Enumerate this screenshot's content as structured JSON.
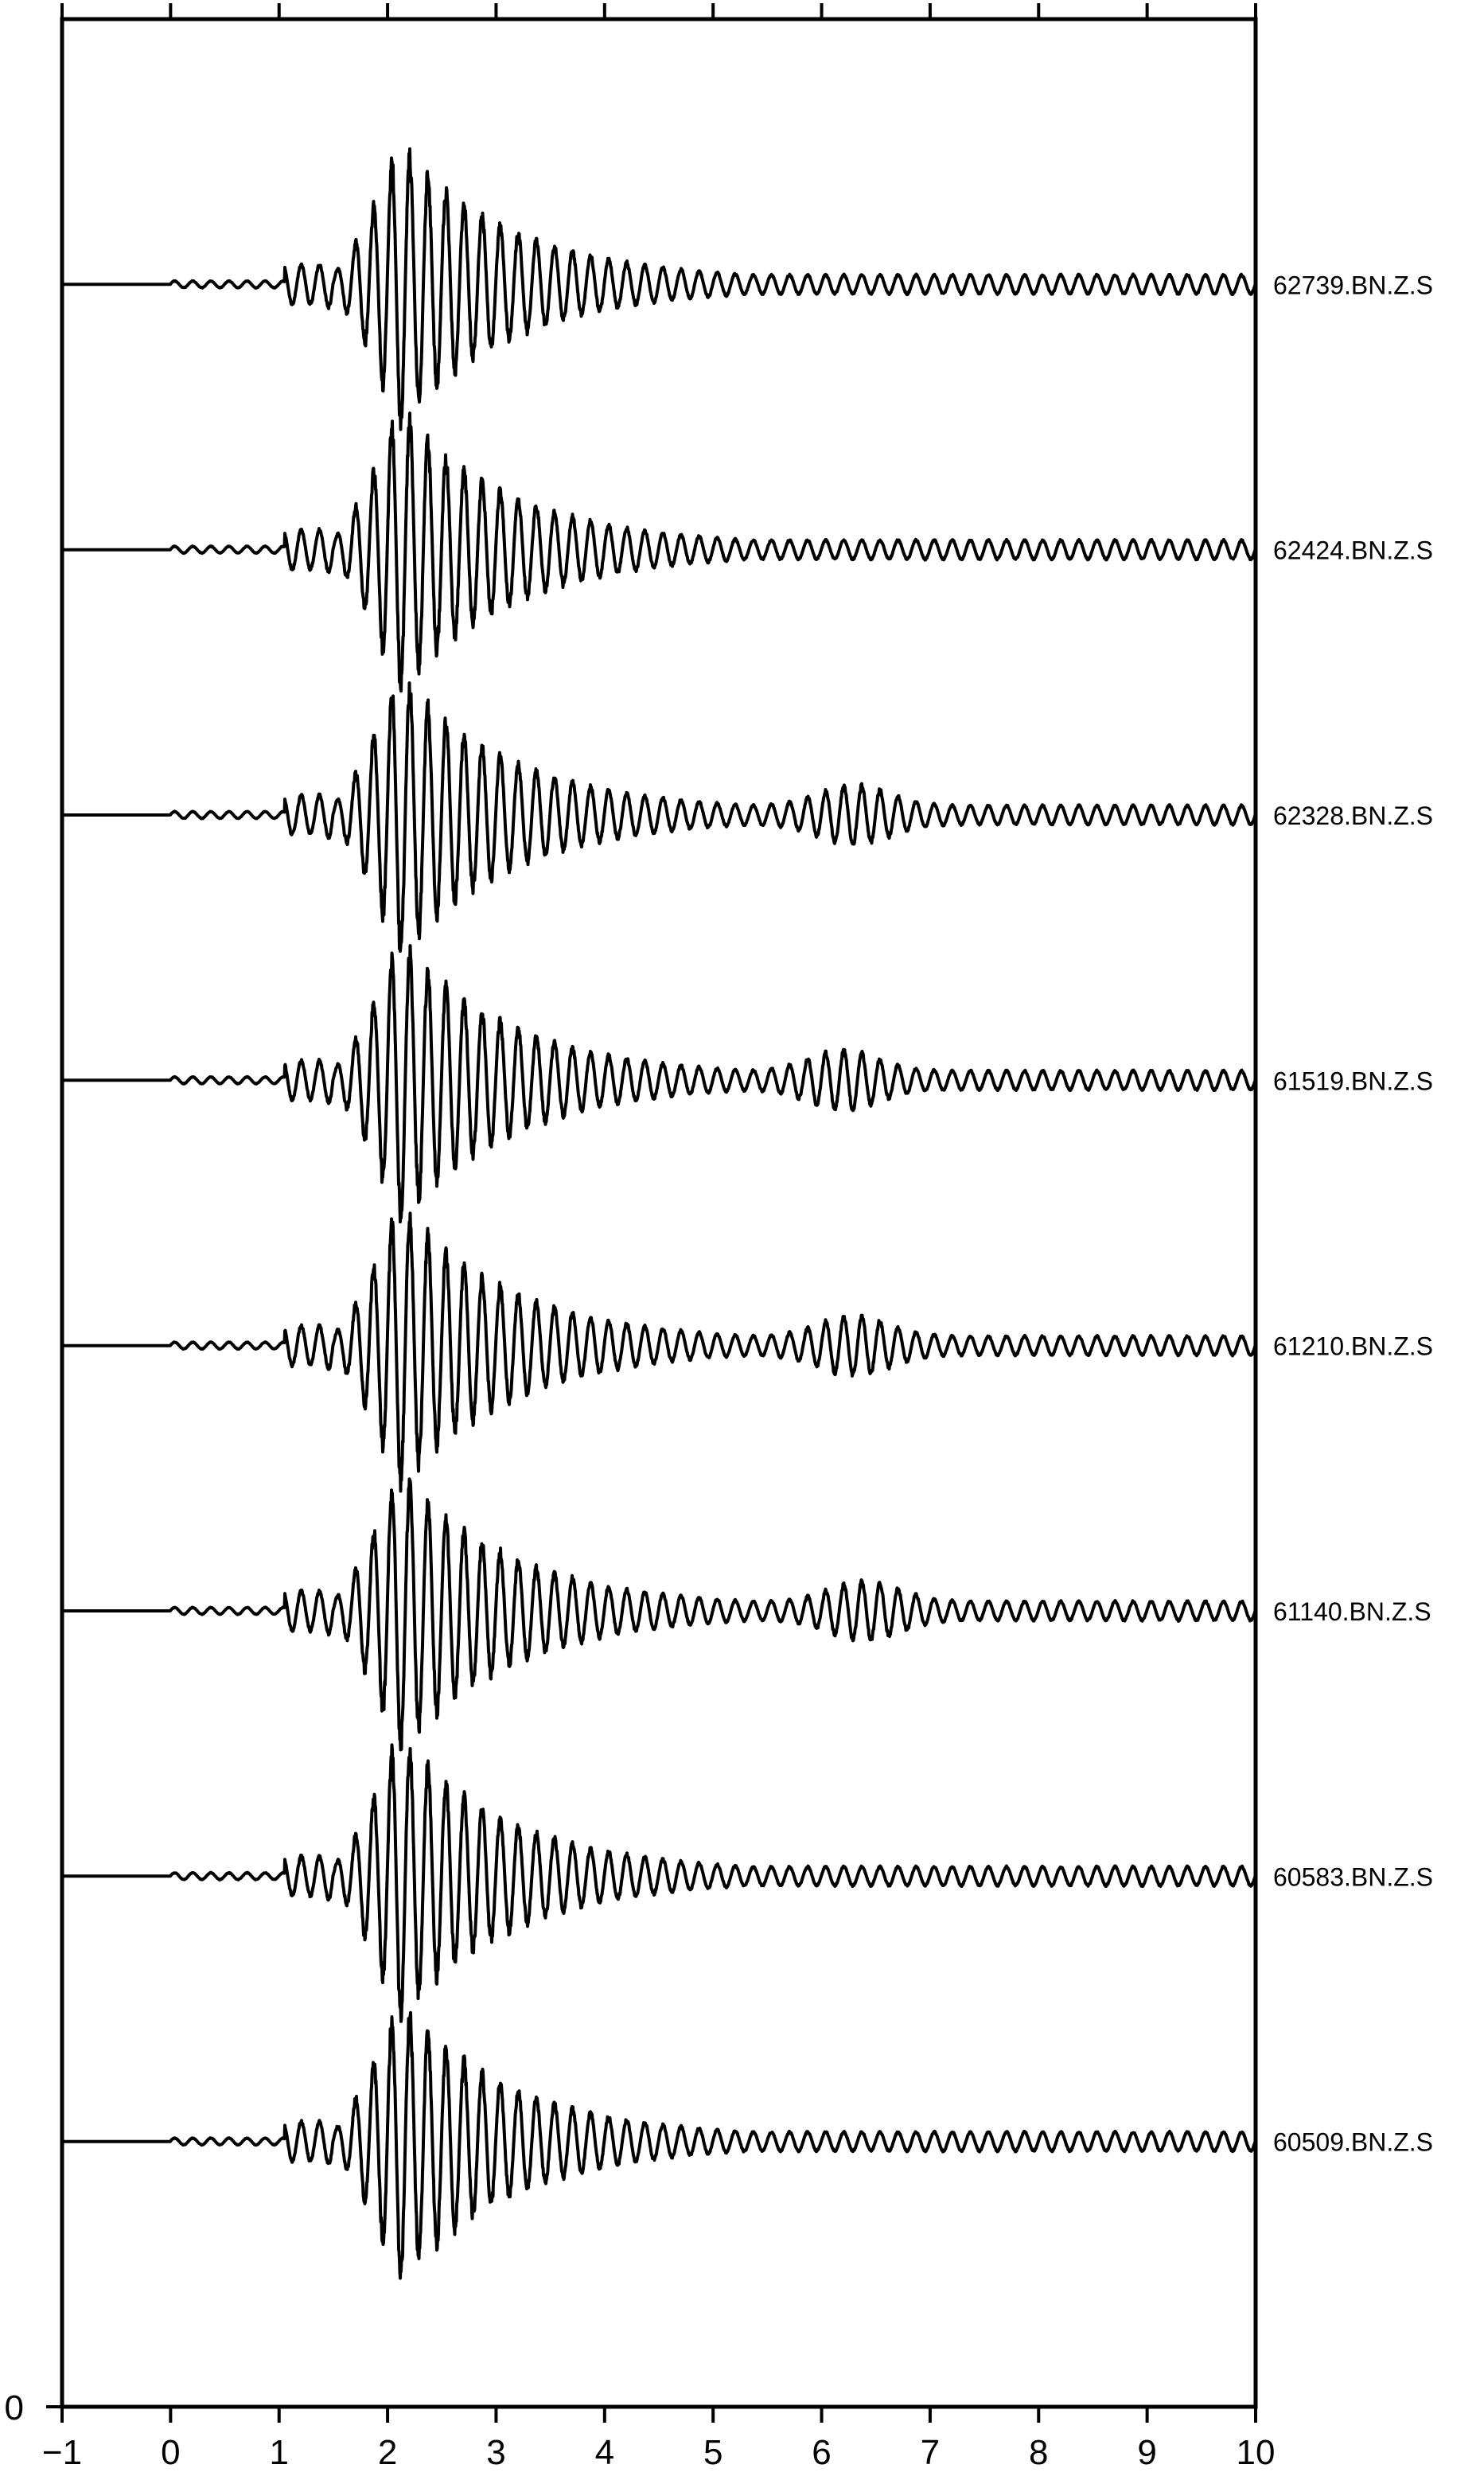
{
  "chart_data": {
    "type": "line",
    "title": "",
    "xlabel": "",
    "ylabel": "",
    "xlim": [
      -1,
      10
    ],
    "ylim": [
      0,
      9
    ],
    "x_ticks": [
      "−1",
      "0",
      "1",
      "2",
      "3",
      "4",
      "5",
      "6",
      "7",
      "8",
      "9",
      "10"
    ],
    "y_ticks": [
      "0"
    ],
    "grid": false,
    "legend": "none",
    "series": [
      {
        "name": "62739.BN.Z.S",
        "offset": 8,
        "signal_onset": 1.15,
        "peak_time": 2.1,
        "late_arrival": 0.0
      },
      {
        "name": "62424.BN.Z.S",
        "offset": 7,
        "signal_onset": 1.15,
        "peak_time": 2.1,
        "late_arrival": 0.0
      },
      {
        "name": "62328.BN.Z.S",
        "offset": 6,
        "signal_onset": 1.15,
        "peak_time": 2.1,
        "late_arrival": 6.3
      },
      {
        "name": "61519.BN.Z.S",
        "offset": 5,
        "signal_onset": 1.15,
        "peak_time": 2.1,
        "late_arrival": 6.2
      },
      {
        "name": "61210.BN.Z.S",
        "offset": 4,
        "signal_onset": 1.15,
        "peak_time": 2.1,
        "late_arrival": 6.3
      },
      {
        "name": "61140.BN.Z.S",
        "offset": 3,
        "signal_onset": 1.15,
        "peak_time": 2.1,
        "late_arrival": 6.4
      },
      {
        "name": "60583.BN.Z.S",
        "offset": 2,
        "signal_onset": 1.15,
        "peak_time": 2.1,
        "late_arrival": 0.0
      },
      {
        "name": "60509.BN.Z.S",
        "offset": 1,
        "signal_onset": 1.15,
        "peak_time": 2.1,
        "late_arrival": 0.0
      }
    ]
  }
}
